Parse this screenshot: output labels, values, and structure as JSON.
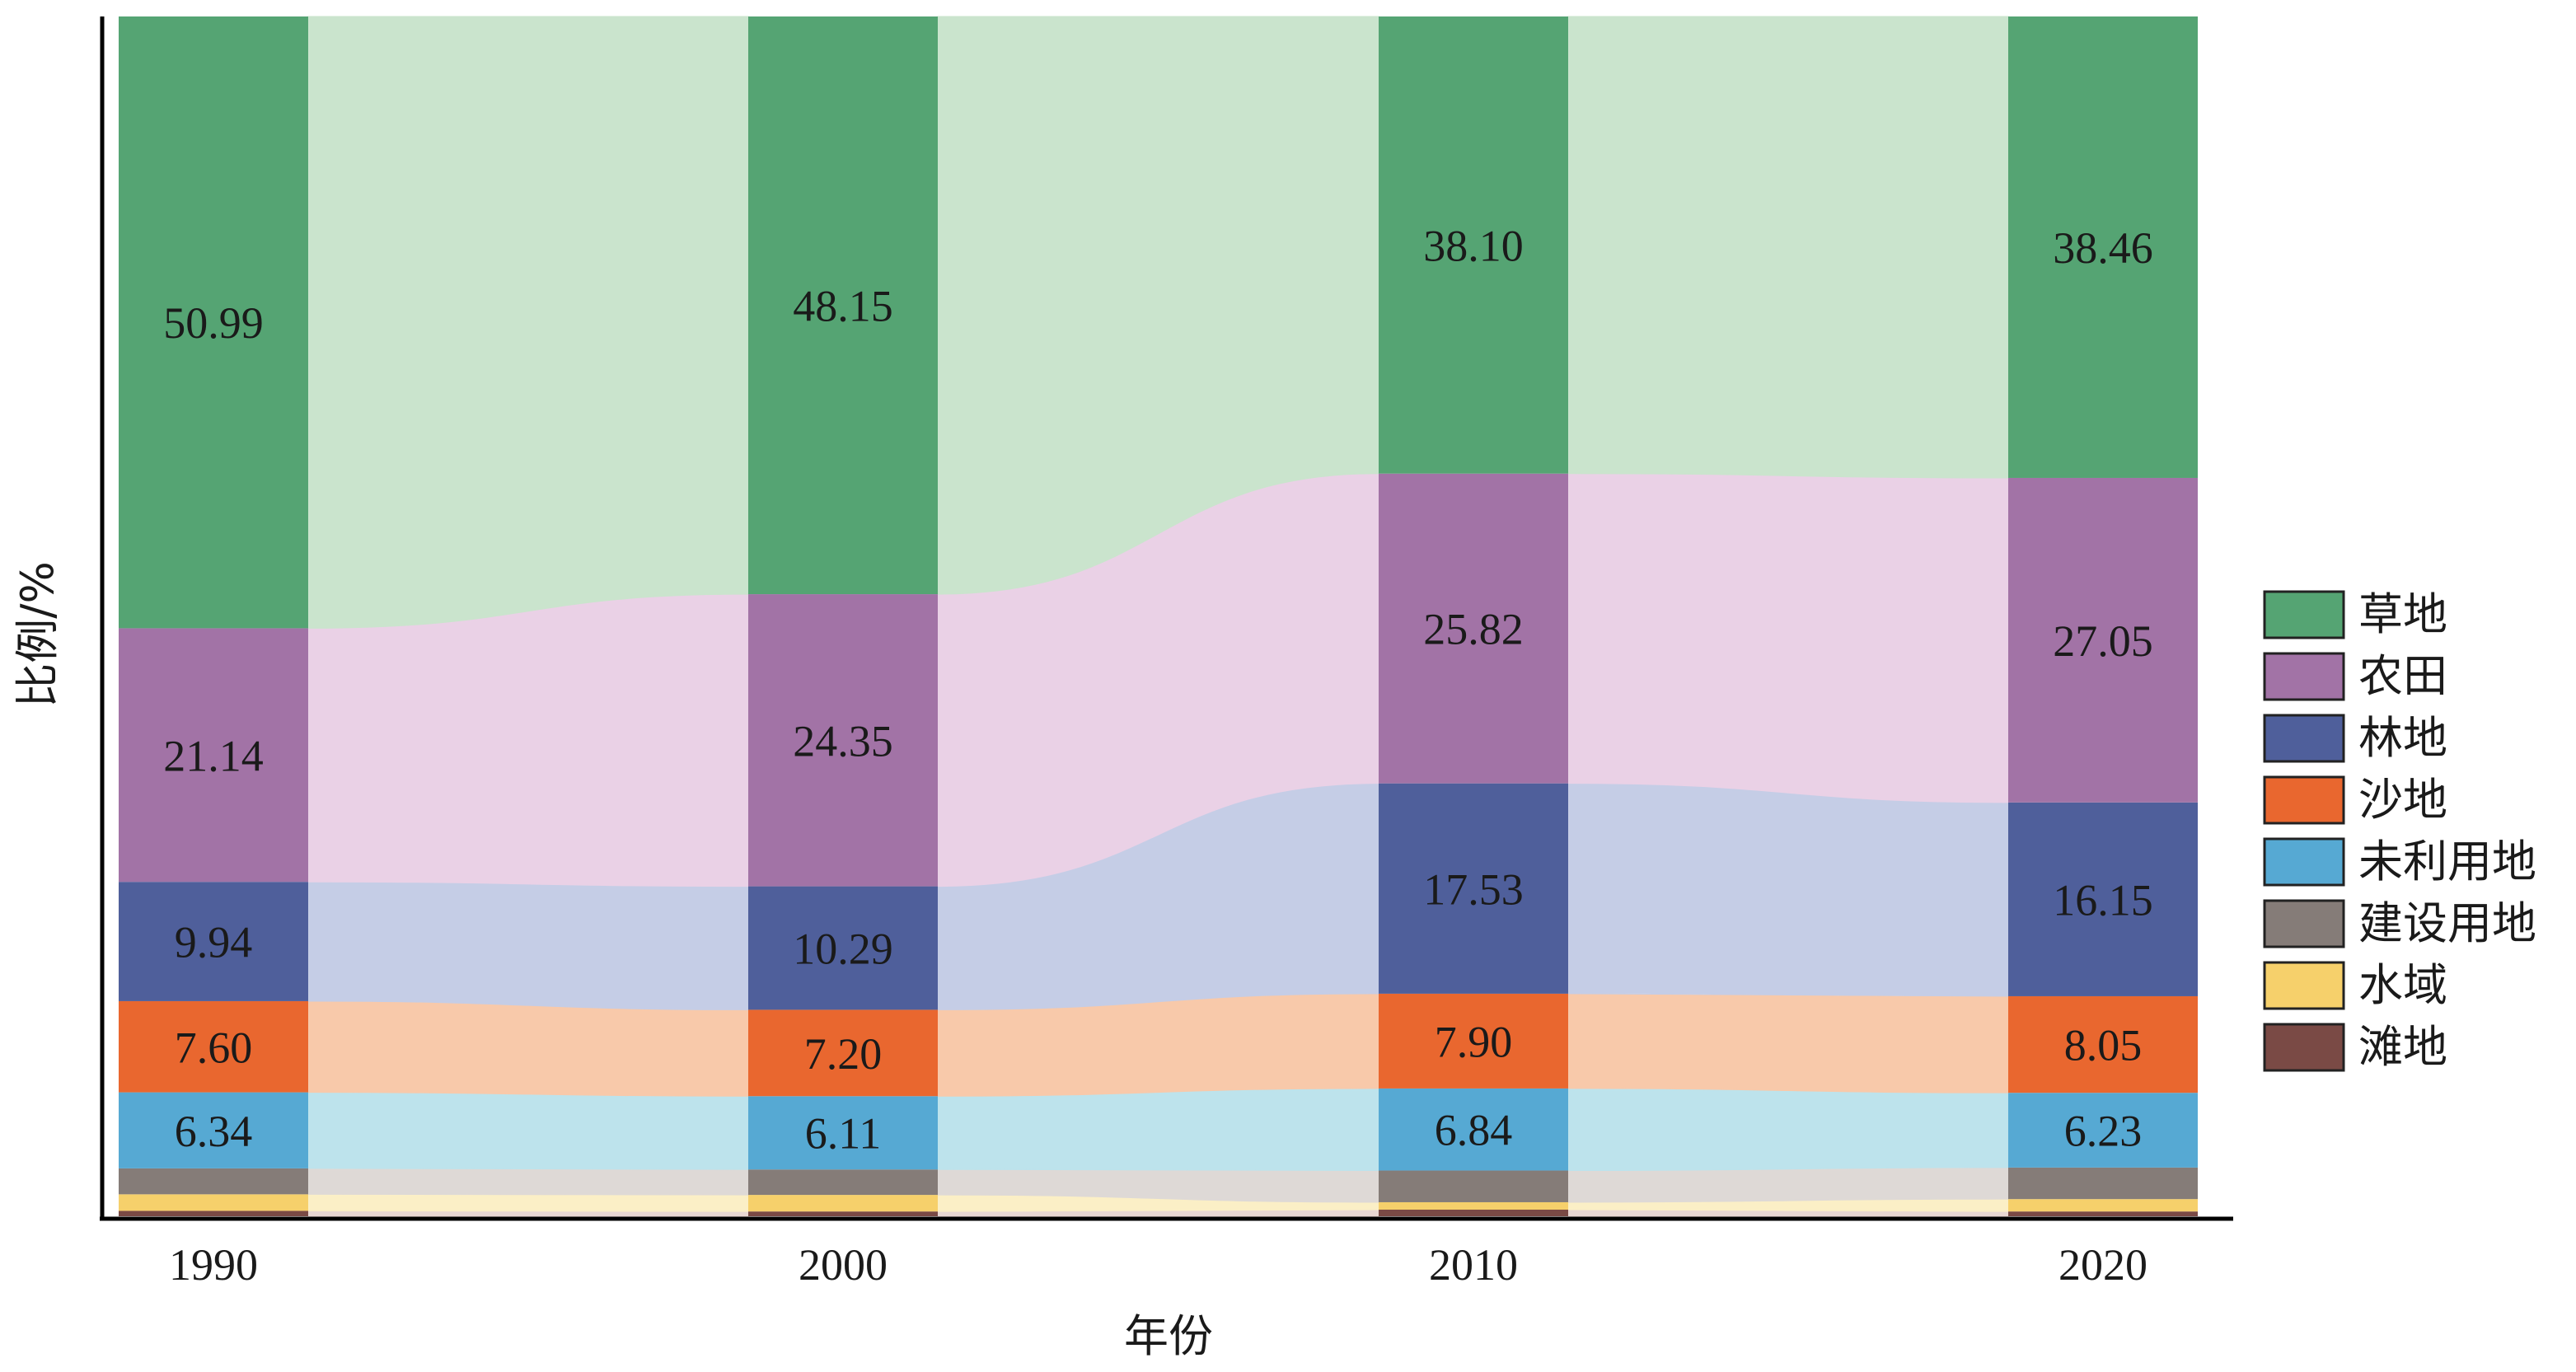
{
  "chart_data": {
    "type": "bar",
    "stacked": true,
    "flows_between_bars": true,
    "xlabel": "年份",
    "ylabel": "比例/%",
    "categories": [
      "1990",
      "2000",
      "2010",
      "2020"
    ],
    "ylim": [
      0,
      100
    ],
    "grid": false,
    "legend_position": "right",
    "series": [
      {
        "name": "滩地",
        "values": [
          0.45,
          0.4,
          0.55,
          0.4
        ],
        "labels": [
          "",
          "",
          "",
          ""
        ],
        "color": "#7a4a45",
        "flow_color": "#e8d7d3"
      },
      {
        "name": "水域",
        "values": [
          1.38,
          1.38,
          0.62,
          1.03
        ],
        "labels": [
          "",
          "",
          "",
          ""
        ],
        "color": "#f6d06b",
        "flow_color": "#fbefc6"
      },
      {
        "name": "建设用地",
        "values": [
          2.16,
          2.12,
          2.64,
          2.63
        ],
        "labels": [
          "",
          "",
          "",
          ""
        ],
        "color": "#857c78",
        "flow_color": "#ded9d6"
      },
      {
        "name": "未利用地",
        "values": [
          6.34,
          6.11,
          6.84,
          6.23
        ],
        "labels": [
          "6.34",
          "6.11",
          "6.84",
          "6.23"
        ],
        "color": "#56a9d3",
        "flow_color": "#bde3ec"
      },
      {
        "name": "沙地",
        "values": [
          7.6,
          7.2,
          7.9,
          8.05
        ],
        "labels": [
          "7.60",
          "7.20",
          "7.90",
          "8.05"
        ],
        "color": "#e9672f",
        "flow_color": "#f8c9aa"
      },
      {
        "name": "林地",
        "values": [
          9.94,
          10.29,
          17.53,
          16.15
        ],
        "labels": [
          "9.94",
          "10.29",
          "17.53",
          "16.15"
        ],
        "color": "#4f5f9b",
        "flow_color": "#c5cde6"
      },
      {
        "name": "农田",
        "values": [
          21.14,
          24.35,
          25.82,
          27.05
        ],
        "labels": [
          "21.14",
          "24.35",
          "25.82",
          "27.05"
        ],
        "color": "#a273a6",
        "flow_color": "#ead1e6"
      },
      {
        "name": "草地",
        "values": [
          50.99,
          48.15,
          38.1,
          38.46
        ],
        "labels": [
          "50.99",
          "48.15",
          "38.10",
          "38.46"
        ],
        "color": "#55a473",
        "flow_color": "#cae4cd"
      }
    ],
    "legend": [
      "草地",
      "农田",
      "林地",
      "沙地",
      "未利用地",
      "建设用地",
      "水域",
      "滩地"
    ]
  }
}
